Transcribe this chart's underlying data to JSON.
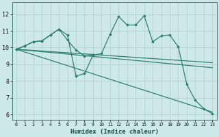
{
  "xlabel": "Humidex (Indice chaleur)",
  "bg_color": "#cde8e8",
  "grid_color": "#b8d0d0",
  "line_color": "#2e7d6e",
  "xlim": [
    -0.5,
    23.5
  ],
  "ylim": [
    5.7,
    12.7
  ],
  "yticks": [
    6,
    7,
    8,
    9,
    10,
    11,
    12
  ],
  "xticks": [
    0,
    1,
    2,
    3,
    4,
    5,
    6,
    7,
    8,
    9,
    10,
    11,
    12,
    13,
    14,
    15,
    16,
    17,
    18,
    19,
    20,
    21,
    22,
    23
  ],
  "jagged_x": [
    0,
    1,
    2,
    3,
    4,
    5,
    6,
    7,
    8,
    9,
    10,
    11,
    12,
    13,
    14,
    15,
    16,
    17,
    18,
    19,
    20,
    21,
    22,
    23
  ],
  "jagged_y": [
    9.9,
    10.1,
    10.35,
    10.4,
    10.75,
    11.1,
    10.75,
    8.3,
    8.45,
    9.55,
    9.65,
    10.8,
    11.85,
    11.35,
    11.35,
    11.9,
    10.35,
    10.7,
    10.75,
    10.05,
    7.8,
    6.85,
    6.35,
    6.05
  ],
  "trend1_x": [
    0,
    23
  ],
  "trend1_y": [
    9.9,
    9.1
  ],
  "trend2_x": [
    0,
    23
  ],
  "trend2_y": [
    9.9,
    8.8
  ],
  "trend3_x": [
    0,
    23
  ],
  "trend3_y": [
    9.9,
    6.15
  ],
  "short_x": [
    0,
    1,
    2,
    3,
    4,
    5,
    6,
    7,
    8,
    9
  ],
  "short_y": [
    9.9,
    10.1,
    10.35,
    10.4,
    10.75,
    11.1,
    10.45,
    9.85,
    9.5,
    9.55
  ]
}
